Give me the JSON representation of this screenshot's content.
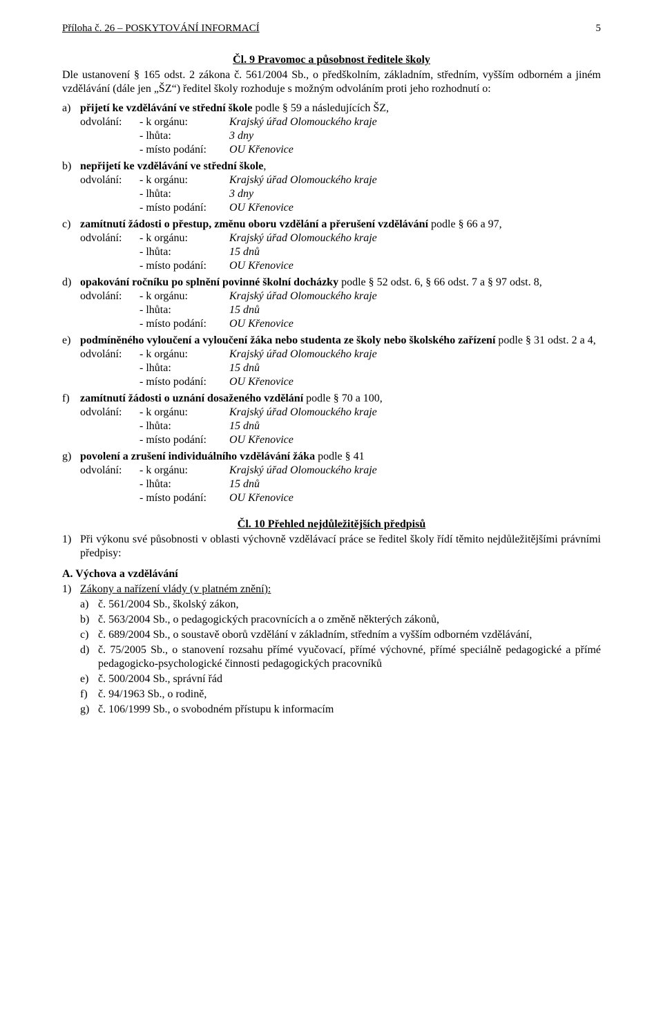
{
  "header": {
    "left": "Příloha č. 26 – POSKYTOVÁNÍ  INFORMACÍ",
    "page_number": "5"
  },
  "article9": {
    "title": "Čl. 9 Pravomoc a působnost ředitele školy",
    "intro": "Dle ustanovení § 165 odst. 2 zákona č. 561/2004 Sb., o předškolním, základním, středním, vyšším odborném a jiném vzdělávání (dále jen „ŠZ“) ředitel školy rozhoduje s možným odvoláním proti jeho rozhodnutí o:",
    "clauses": [
      {
        "letter": "a)",
        "text_before_bold": "",
        "bold": "přijetí ke vzdělávání ve střední škole",
        "text_after_bold": " podle § 59 a následujících ŠZ,",
        "rows": [
          {
            "label": "odvolání:",
            "field": "- k orgánu:",
            "value": "Krajský úřad Olomouckého kraje"
          },
          {
            "label": "",
            "field": "- lhůta:",
            "value": "3 dny"
          },
          {
            "label": "",
            "field": "- místo podání:",
            "value": "OU Křenovice"
          }
        ]
      },
      {
        "letter": "b)",
        "text_before_bold": "",
        "bold": "nepřijetí ke vzdělávání ve střední škole",
        "text_after_bold": ",",
        "rows": [
          {
            "label": "odvolání:",
            "field": "- k orgánu:",
            "value": "Krajský úřad Olomouckého kraje"
          },
          {
            "label": "",
            "field": "- lhůta:",
            "value": "3 dny"
          },
          {
            "label": "",
            "field": "- místo podání:",
            "value": "OU Křenovice"
          }
        ]
      },
      {
        "letter": "c)",
        "text_before_bold": "",
        "bold": "zamítnutí žádosti o přestup, změnu oboru vzdělání a přerušení vzdělávání",
        "text_after_bold": " podle § 66 a 97,",
        "rows": [
          {
            "label": "odvolání:",
            "field": "- k orgánu:",
            "value": "Krajský úřad Olomouckého kraje"
          },
          {
            "label": "",
            "field": "- lhůta:",
            "value": "15 dnů"
          },
          {
            "label": "",
            "field": "- místo podání:",
            "value": "OU Křenovice"
          }
        ]
      },
      {
        "letter": "d)",
        "text_before_bold": "",
        "bold": "opakování ročníku po splnění povinné školní docházky",
        "text_after_bold": " podle § 52 odst. 6, § 66 odst. 7 a § 97 odst. 8,",
        "rows": [
          {
            "label": "odvolání:",
            "field": "- k orgánu:",
            "value": "Krajský úřad Olomouckého kraje"
          },
          {
            "label": "",
            "field": "- lhůta:",
            "value": "15 dnů"
          },
          {
            "label": "",
            "field": "- místo podání:",
            "value": "OU Křenovice"
          }
        ]
      },
      {
        "letter": "e)",
        "text_before_bold": "",
        "bold": "podmíněného vyloučení a vyloučení žáka nebo studenta ze školy nebo školského zařízení",
        "text_after_bold": " podle § 31 odst. 2 a 4,",
        "rows": [
          {
            "label": "odvolání:",
            "field": "- k orgánu:",
            "value": "Krajský úřad Olomouckého kraje"
          },
          {
            "label": "",
            "field": "- lhůta:",
            "value": "15 dnů"
          },
          {
            "label": "",
            "field": "- místo podání:",
            "value": "OU Křenovice"
          }
        ]
      },
      {
        "letter": "f)",
        "text_before_bold": "",
        "bold": "zamítnutí žádosti o uznání dosaženého vzdělání",
        "text_after_bold": " podle § 70 a 100,",
        "rows": [
          {
            "label": "odvolání:",
            "field": "- k orgánu:",
            "value": "Krajský úřad Olomouckého kraje"
          },
          {
            "label": "",
            "field": "- lhůta:",
            "value": "15 dnů"
          },
          {
            "label": "",
            "field": "- místo podání:",
            "value": "OU Křenovice"
          }
        ]
      },
      {
        "letter": "g)",
        "text_before_bold": "",
        "bold": "povolení a zrušení individuálního vzdělávání žáka",
        "text_after_bold": " podle § 41",
        "rows": [
          {
            "label": "odvolání:",
            "field": "- k orgánu:",
            "value": "Krajský úřad Olomouckého kraje"
          },
          {
            "label": "",
            "field": "- lhůta:",
            "value": "15 dnů"
          },
          {
            "label": "",
            "field": "- místo podání:",
            "value": "OU Křenovice"
          }
        ]
      }
    ]
  },
  "article10": {
    "title": "Čl. 10 Přehled nejdůležitějších předpisů",
    "list1": [
      {
        "marker": "1)",
        "text": "Při výkonu své působnosti v oblasti výchovně vzdělávací práce se ředitel školy řídí těmito nejdůležitějšími právními předpisy:"
      }
    ],
    "heading_A": "A. Výchova a vzdělávání",
    "sublist_heading": {
      "marker": "1)",
      "text": "Zákony a nařízení vlády (v platném znění):"
    },
    "sub_items": [
      {
        "marker": "a)",
        "text": "č. 561/2004 Sb., školský zákon,"
      },
      {
        "marker": "b)",
        "text": "č. 563/2004 Sb., o pedagogických pracovnících a o změně některých zákonů,"
      },
      {
        "marker": "c)",
        "text": "č. 689/2004 Sb., o soustavě oborů vzdělání v základním, středním a vyšším odborném vzdělávání,"
      },
      {
        "marker": "d)",
        "text": "č. 75/2005 Sb., o stanovení rozsahu přímé vyučovací, přímé výchovné, přímé speciálně pedagogické a přímé pedagogicko-psychologické činnosti pedagogických pracovníků"
      },
      {
        "marker": "e)",
        "text": "č. 500/2004 Sb., správní řád"
      },
      {
        "marker": "f)",
        "text": "č. 94/1963 Sb., o rodině,"
      },
      {
        "marker": "g)",
        "text": "č. 106/1999 Sb., o svobodném přístupu k informacím"
      }
    ]
  }
}
